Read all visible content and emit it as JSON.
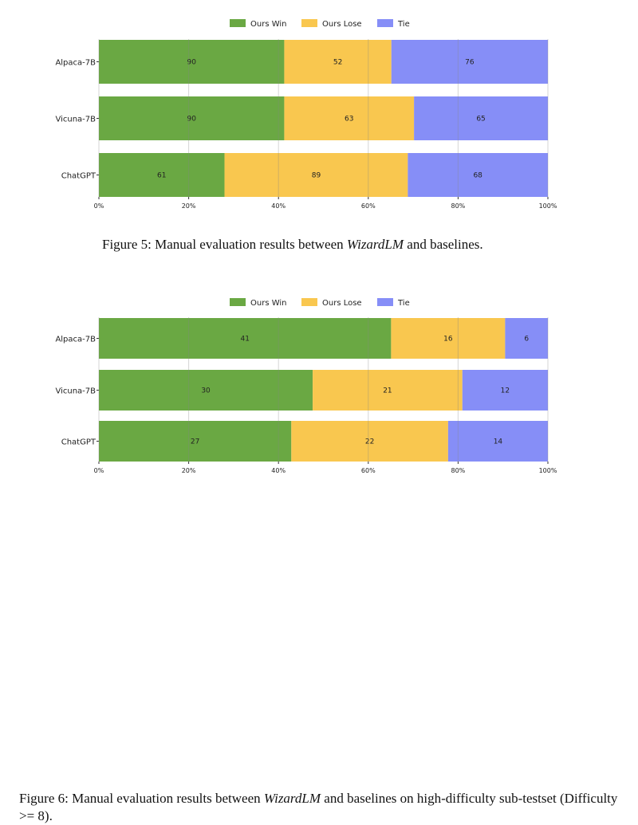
{
  "figures": [
    {
      "caption": {
        "prefix": "Figure 5: Manual evaluation results between ",
        "emph": "WizardLM",
        "suffix": " and baselines."
      },
      "chart_data": {
        "type": "bar",
        "orientation": "horizontal",
        "stacked": true,
        "normalized": true,
        "categories": [
          "Alpaca-7B",
          "Vicuna-7B",
          "ChatGPT"
        ],
        "series": [
          {
            "name": "Ours Win",
            "values": [
              90,
              90,
              61
            ],
            "color": "#6aa843"
          },
          {
            "name": "Ours Lose",
            "values": [
              52,
              63,
              89
            ],
            "color": "#f9c74f"
          },
          {
            "name": "Tie",
            "values": [
              76,
              65,
              68
            ],
            "color": "#868ef7"
          }
        ],
        "xticks": [
          "0%",
          "20%",
          "40%",
          "60%",
          "80%",
          "100%"
        ],
        "xlim": [
          0,
          100
        ],
        "grid": true,
        "legend": "top-center"
      }
    },
    {
      "caption": {
        "prefix": "Figure 6: Manual evaluation results between ",
        "emph": "WizardLM",
        "suffix": " and baselines on high-difficulty sub-testset (Difficulty >= 8)."
      },
      "chart_data": {
        "type": "bar",
        "orientation": "horizontal",
        "stacked": true,
        "normalized": true,
        "categories": [
          "Alpaca-7B",
          "Vicuna-7B",
          "ChatGPT"
        ],
        "series": [
          {
            "name": "Ours Win",
            "values": [
              41,
              30,
              27
            ],
            "color": "#6aa843"
          },
          {
            "name": "Ours Lose",
            "values": [
              16,
              21,
              22
            ],
            "color": "#f9c74f"
          },
          {
            "name": "Tie",
            "values": [
              6,
              12,
              14
            ],
            "color": "#868ef7"
          }
        ],
        "xticks": [
          "0%",
          "20%",
          "40%",
          "60%",
          "80%",
          "100%"
        ],
        "xlim": [
          0,
          100
        ],
        "grid": true,
        "legend": "top-center"
      }
    }
  ]
}
